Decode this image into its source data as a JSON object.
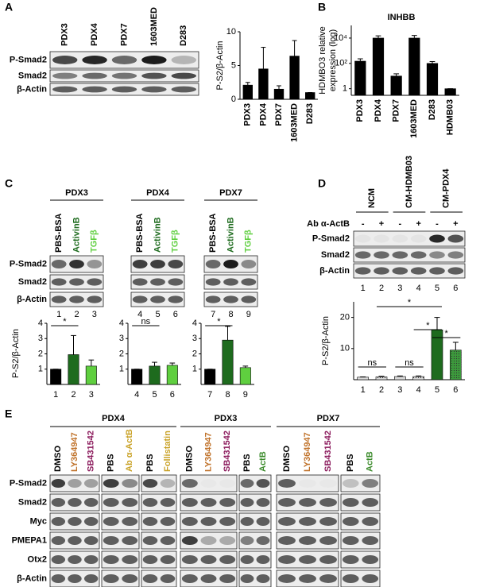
{
  "panels": [
    {
      "letter": "A",
      "blot": {
        "lanes": [
          "PDX3",
          "PDX4",
          "PDX7",
          "1603MED",
          "D283"
        ],
        "rows": [
          "P-Smad2",
          "Smad2",
          "β-Actin"
        ]
      },
      "chart": {
        "type": "bar",
        "ylabel": "P-S2/β-Actin",
        "categories": [
          "PDX3",
          "PDX4",
          "PDX7",
          "1603MED",
          "D283"
        ],
        "values": [
          2.1,
          4.5,
          1.5,
          6.4,
          1.0
        ],
        "errors": [
          0.4,
          3.2,
          0.5,
          2.3,
          0
        ],
        "color": "#000000",
        "ylim": [
          0,
          10
        ],
        "yticks": [
          0,
          5,
          10
        ]
      }
    },
    {
      "letter": "B",
      "chart": {
        "type": "bar",
        "title": "INHBB",
        "ylabel": [
          "HDMBO3 relative",
          "expression (log)"
        ],
        "categories": [
          "PDX3",
          "PDX4",
          "PDX7",
          "1603MED",
          "D283",
          "HDMB03"
        ],
        "values": [
          150,
          10000,
          10,
          10000,
          100,
          1
        ],
        "errors": [
          80,
          5000,
          5,
          6000,
          40,
          0
        ],
        "color": "#000000",
        "log_scale": true,
        "ylim": [
          0.3,
          100000
        ],
        "yticks": [
          1,
          {
            "value": 100,
            "label": "10²"
          },
          {
            "value": 10000,
            "label": "10⁴"
          }
        ]
      }
    },
    {
      "letter": "C",
      "rows": [
        "P-Smad2",
        "Smad2",
        "β-Actin"
      ],
      "lanes": [
        "PBS-BSA",
        "ActivinB",
        "TGFβ"
      ],
      "lane_colors": [
        "#000000",
        "#1e6b1e",
        "#5fcf3f"
      ],
      "ylabel": "P-S2/β-Actin",
      "ylim": [
        0,
        4
      ],
      "yticks": [
        1,
        2,
        3,
        4
      ],
      "groups": [
        {
          "title": "PDX3",
          "chart": {
            "type": "bar",
            "categories": [
              "1",
              "2",
              "3"
            ],
            "values": [
              1,
              1.95,
              1.2
            ],
            "errors": [
              0,
              1.25,
              0.4
            ],
            "annotation": "*"
          }
        },
        {
          "title": "PDX4",
          "chart": {
            "type": "bar",
            "categories": [
              "4",
              "5",
              "6"
            ],
            "values": [
              1,
              1.2,
              1.25
            ],
            "errors": [
              0,
              0.25,
              0.15
            ],
            "annotation": "ns"
          }
        },
        {
          "title": "PDX7",
          "chart": {
            "type": "bar",
            "categories": [
              "7",
              "8",
              "9"
            ],
            "values": [
              1,
              2.9,
              1.1
            ],
            "errors": [
              0,
              0.9,
              0.1
            ],
            "annotation": "*"
          }
        }
      ]
    },
    {
      "letter": "D",
      "groups": [
        "NCM",
        "CM-HDMB03",
        "CM-PDX4"
      ],
      "treatment": "Ab α-ActB",
      "treatment_signs": [
        "-",
        "+",
        "-",
        "+",
        "-",
        "+"
      ],
      "rows": [
        "P-Smad2",
        "Smad2",
        "β-Actin"
      ],
      "chart": {
        "type": "bar",
        "ylabel": "P-S2/β-Actin",
        "categories": [
          "1",
          "2",
          "3",
          "4",
          "5",
          "6"
        ],
        "values": [
          0.8,
          0.9,
          1.0,
          1.0,
          16,
          9.5
        ],
        "errors": [
          0.1,
          0.2,
          0.2,
          0.2,
          4,
          2.5
        ],
        "colors": [
          "#d9d9d9",
          "#d9d9d9",
          "#d9d9d9",
          "#d9d9d9",
          "#1e6b1e",
          "#3c9a3c"
        ],
        "ylim": [
          0,
          25
        ],
        "yticks": [
          10,
          20
        ],
        "annotations": [
          "ns",
          "ns",
          "*",
          "*",
          "*"
        ]
      }
    },
    {
      "letter": "E",
      "rows": [
        "P-Smad2",
        "Smad2",
        "Myc",
        "PMEPA1",
        "Otx2",
        "β-Actin"
      ],
      "groups": [
        {
          "title": "PDX4",
          "sections": [
            [
              {
                "label": "DMSO",
                "color": "#000000"
              },
              {
                "label": "LY364947",
                "color": "#c0722a"
              },
              {
                "label": "SB431542",
                "color": "#8b1a5c"
              }
            ],
            [
              {
                "label": "PBS",
                "color": "#000000"
              },
              {
                "label": "Ab α-ActB",
                "color": "#c9a227"
              }
            ],
            [
              {
                "label": "PBS",
                "color": "#000000"
              },
              {
                "label": "Follistatin",
                "color": "#c9a227"
              }
            ]
          ]
        },
        {
          "title": "PDX3",
          "sections": [
            [
              {
                "label": "DMSO",
                "color": "#000000"
              },
              {
                "label": "LY364947",
                "color": "#c0722a"
              },
              {
                "label": "SB431542",
                "color": "#8b1a5c"
              }
            ],
            [
              {
                "label": "PBS",
                "color": "#000000"
              },
              {
                "label": "ActB",
                "color": "#3a8a2a"
              }
            ]
          ]
        },
        {
          "title": "PDX7",
          "sections": [
            [
              {
                "label": "DMSO",
                "color": "#000000"
              },
              {
                "label": "LY364947",
                "color": "#c0722a"
              },
              {
                "label": "SB431542",
                "color": "#8b1a5c"
              }
            ],
            [
              {
                "label": "PBS",
                "color": "#000000"
              },
              {
                "label": "ActB",
                "color": "#3a8a2a"
              }
            ]
          ]
        }
      ]
    }
  ]
}
